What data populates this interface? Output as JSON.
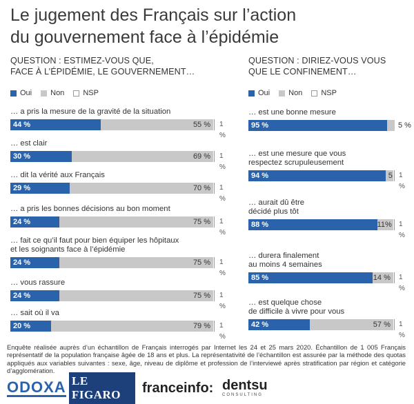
{
  "title_line1": "Le jugement des Français sur l’action",
  "title_line2": "du gouvernement face à l’épidémie",
  "legend": {
    "oui": "Oui",
    "non": "Non",
    "nsp": "NSP"
  },
  "colors": {
    "oui": "#2a63ab",
    "non": "#c8c8c8",
    "nsp": "#ffffff"
  },
  "left": {
    "question_line1": "QUESTION : ESTIMEZ-VOUS QUE,",
    "question_line2": "FACE À L’ÉPIDÉMIE, LE GOUVERNEMENT…"
  },
  "right": {
    "question_line1": "QUESTION : DIRIEZ-VOUS VOUS",
    "question_line2": "QUE LE CONFINEMENT…"
  },
  "chart_data": [
    {
      "type": "bar",
      "stacked": true,
      "orientation": "horizontal",
      "title": "QUESTION : ESTIMEZ-VOUS QUE, FACE À L’ÉPIDÉMIE, LE GOUVERNEMENT…",
      "series_names": [
        "Oui",
        "Non",
        "NSP"
      ],
      "items": [
        {
          "label": [
            "… a pris la mesure de la gravité de la situation"
          ],
          "oui": 44,
          "non": 55,
          "nsp": 1,
          "oui_text": "44 %",
          "non_text": "55 %",
          "nsp_text": "1 %"
        },
        {
          "label": [
            "… est clair"
          ],
          "oui": 30,
          "non": 69,
          "nsp": 1,
          "oui_text": "30 %",
          "non_text": "69 %",
          "nsp_text": "1 %"
        },
        {
          "label": [
            "… dit la vérité aux Français"
          ],
          "oui": 29,
          "non": 70,
          "nsp": 1,
          "oui_text": "29 %",
          "non_text": "70 %",
          "nsp_text": "1 %"
        },
        {
          "label": [
            "… a pris les bonnes décisions au bon moment"
          ],
          "oui": 24,
          "non": 75,
          "nsp": 1,
          "oui_text": "24 %",
          "non_text": "75 %",
          "nsp_text": "1 %"
        },
        {
          "label": [
            "… fait ce qu’il faut pour bien équiper les hôpitaux",
            "et les soignants face à l’épidémie"
          ],
          "oui": 24,
          "non": 75,
          "nsp": 1,
          "oui_text": "24 %",
          "non_text": "75 %",
          "nsp_text": "1 %"
        },
        {
          "label": [
            "… vous rassure"
          ],
          "oui": 24,
          "non": 75,
          "nsp": 1,
          "oui_text": "24 %",
          "non_text": "75 %",
          "nsp_text": "1 %"
        },
        {
          "label": [
            "… sait où il va"
          ],
          "oui": 20,
          "non": 79,
          "nsp": 1,
          "oui_text": "20 %",
          "non_text": "79 %",
          "nsp_text": "1 %"
        }
      ]
    },
    {
      "type": "bar",
      "stacked": true,
      "orientation": "horizontal",
      "title": "QUESTION : DIRIEZ-VOUS VOUS QUE LE CONFINEMENT…",
      "series_names": [
        "Oui",
        "Non",
        "NSP"
      ],
      "items": [
        {
          "label": [
            "… est une bonne mesure"
          ],
          "oui": 95,
          "non": 5,
          "nsp": 0,
          "oui_text": "95 %",
          "non_text": "5 %",
          "nsp_text": ""
        },
        {
          "label": [
            "… est une mesure que vous",
            "respectez scrupuleusement"
          ],
          "oui": 94,
          "non": 5,
          "nsp": 1,
          "oui_text": "94 %",
          "non_text": "5",
          "nsp_text": "1 %"
        },
        {
          "label": [
            "… aurait dû être",
            "décidé plus tôt"
          ],
          "oui": 88,
          "non": 11,
          "nsp": 1,
          "oui_text": "88 %",
          "non_text": "11%",
          "nsp_text": "1 %"
        },
        {
          "label": [
            "… durera finalement",
            "au moins 4 semaines"
          ],
          "oui": 85,
          "non": 14,
          "nsp": 1,
          "oui_text": "85 %",
          "non_text": "14 %",
          "nsp_text": "1 %"
        },
        {
          "label": [
            "… est quelque chose",
            "de difficile à vivre pour vous"
          ],
          "oui": 42,
          "non": 57,
          "nsp": 1,
          "oui_text": "42 %",
          "non_text": "57 %",
          "nsp_text": "1 %"
        }
      ]
    }
  ],
  "footer": "Enquête réalisée auprès d’un échantillon de Français interrogés par Internet les 24 et 25 mars 2020. Échantillon de 1 005 Français représentatif de la population française âgée de 18 ans et plus. La représentativité de l’échantillon est assurée par la méthode des quotas appliqués aux variables suivantes : sexe, âge, niveau de diplôme et profession de l’interviewé après stratification par région et catégorie d’agglomération.",
  "logos": {
    "odoxa": "ODOXA",
    "figaro": "LE FIGARO",
    "franceinfo": "franceinfo:",
    "dentsu": "dentsu",
    "dentsu_sub": "CONSULTING"
  }
}
